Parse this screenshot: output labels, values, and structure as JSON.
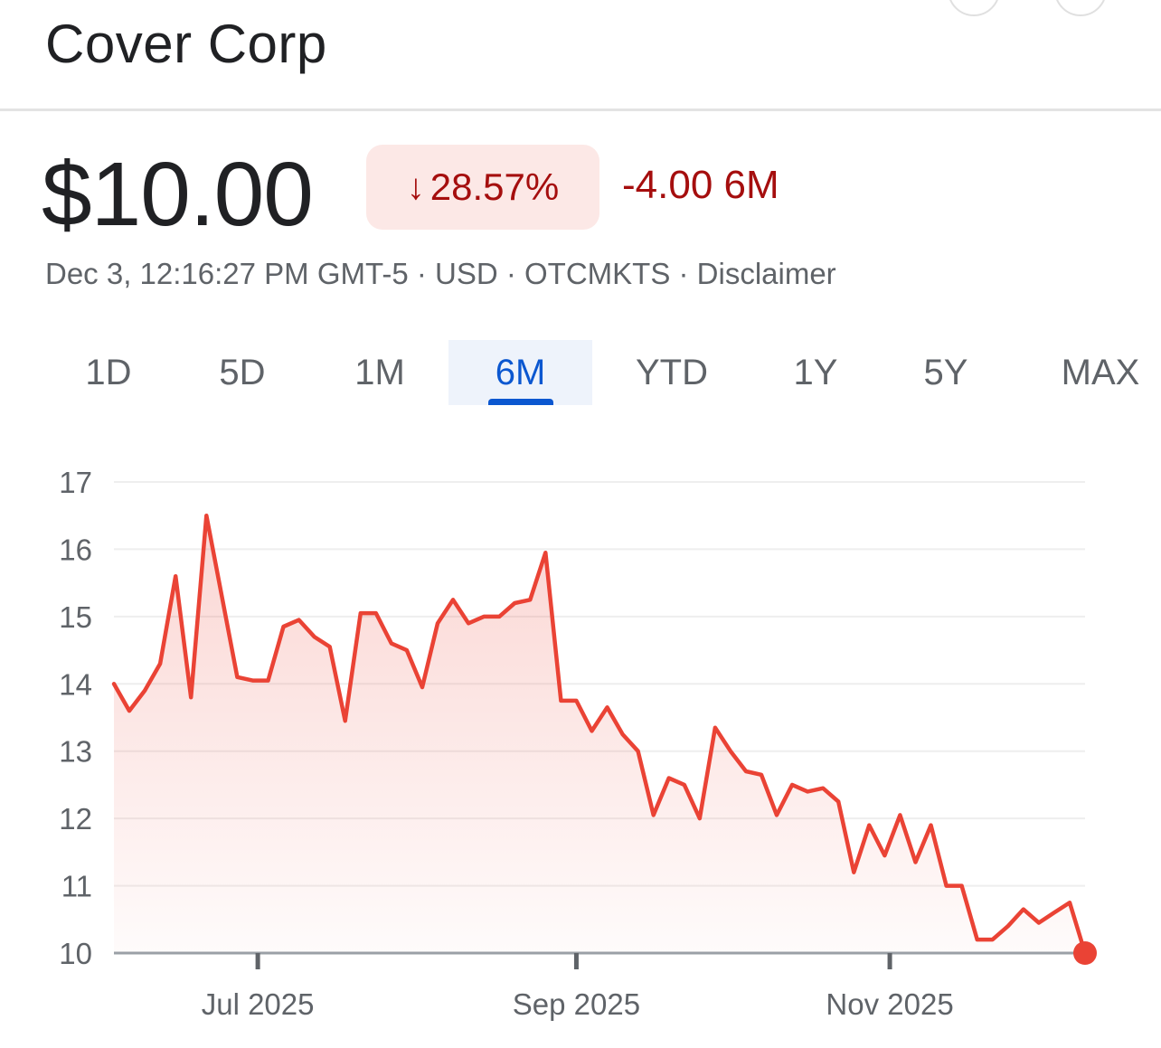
{
  "header": {
    "company": "Cover Corp"
  },
  "quote": {
    "price": "$10.00",
    "change_pct": "28.57%",
    "change_abs": "-4.00 6M",
    "meta": "Dec 3, 12:16:27 PM GMT-5 · USD · OTCMKTS · Disclaimer"
  },
  "icons": {
    "down_arrow": "arrow-down-icon"
  },
  "tabs": [
    {
      "label": "1D"
    },
    {
      "label": "5D"
    },
    {
      "label": "1M"
    },
    {
      "label": "6M",
      "active": true
    },
    {
      "label": "YTD"
    },
    {
      "label": "1Y"
    },
    {
      "label": "5Y"
    },
    {
      "label": "MAX"
    }
  ],
  "colors": {
    "line": "#ea4335",
    "negative": "#a50e0e",
    "pill_bg": "#fce8e6",
    "active_tab": "#0b57d0",
    "grid": "#eeeeee",
    "axis_text": "#5f6368"
  },
  "chart_data": {
    "type": "area",
    "title": "",
    "xlabel": "",
    "ylabel": "",
    "ylim": [
      10,
      17
    ],
    "yticks": [
      10,
      11,
      12,
      13,
      14,
      15,
      16,
      17
    ],
    "xticks": [
      {
        "date": "2025-07-01",
        "label": "Jul 2025"
      },
      {
        "date": "2025-09-01",
        "label": "Sep 2025"
      },
      {
        "date": "2025-11-01",
        "label": "Nov 2025"
      }
    ],
    "grid": true,
    "series": [
      {
        "points": [
          [
            "2025-06-03",
            14.0
          ],
          [
            "2025-06-06",
            13.6
          ],
          [
            "2025-06-09",
            13.9
          ],
          [
            "2025-06-12",
            14.3
          ],
          [
            "2025-06-15",
            15.6
          ],
          [
            "2025-06-18",
            13.8
          ],
          [
            "2025-06-21",
            16.5
          ],
          [
            "2025-06-27",
            14.1
          ],
          [
            "2025-06-30",
            14.05
          ],
          [
            "2025-07-03",
            14.05
          ],
          [
            "2025-07-06",
            14.85
          ],
          [
            "2025-07-09",
            14.95
          ],
          [
            "2025-07-12",
            14.7
          ],
          [
            "2025-07-15",
            14.55
          ],
          [
            "2025-07-18",
            13.45
          ],
          [
            "2025-07-21",
            15.05
          ],
          [
            "2025-07-24",
            15.05
          ],
          [
            "2025-07-27",
            14.6
          ],
          [
            "2025-07-30",
            14.5
          ],
          [
            "2025-08-02",
            13.95
          ],
          [
            "2025-08-05",
            14.9
          ],
          [
            "2025-08-08",
            15.25
          ],
          [
            "2025-08-11",
            14.9
          ],
          [
            "2025-08-14",
            15.0
          ],
          [
            "2025-08-17",
            15.0
          ],
          [
            "2025-08-20",
            15.2
          ],
          [
            "2025-08-23",
            15.25
          ],
          [
            "2025-08-26",
            15.95
          ],
          [
            "2025-08-29",
            13.75
          ],
          [
            "2025-09-01",
            13.75
          ],
          [
            "2025-09-04",
            13.3
          ],
          [
            "2025-09-07",
            13.65
          ],
          [
            "2025-09-10",
            13.25
          ],
          [
            "2025-09-13",
            13.0
          ],
          [
            "2025-09-16",
            12.05
          ],
          [
            "2025-09-19",
            12.6
          ],
          [
            "2025-09-22",
            12.5
          ],
          [
            "2025-09-25",
            12.0
          ],
          [
            "2025-09-28",
            13.35
          ],
          [
            "2025-10-01",
            13.0
          ],
          [
            "2025-10-04",
            12.7
          ],
          [
            "2025-10-07",
            12.65
          ],
          [
            "2025-10-10",
            12.05
          ],
          [
            "2025-10-13",
            12.5
          ],
          [
            "2025-10-16",
            12.4
          ],
          [
            "2025-10-19",
            12.45
          ],
          [
            "2025-10-22",
            12.25
          ],
          [
            "2025-10-25",
            11.2
          ],
          [
            "2025-10-28",
            11.9
          ],
          [
            "2025-10-31",
            11.45
          ],
          [
            "2025-11-03",
            12.05
          ],
          [
            "2025-11-06",
            11.35
          ],
          [
            "2025-11-09",
            11.9
          ],
          [
            "2025-11-12",
            11.0
          ],
          [
            "2025-11-15",
            11.0
          ],
          [
            "2025-11-18",
            10.2
          ],
          [
            "2025-11-21",
            10.2
          ],
          [
            "2025-11-24",
            10.4
          ],
          [
            "2025-11-27",
            10.65
          ],
          [
            "2025-11-30",
            10.45
          ],
          [
            "2025-12-03",
            10.6
          ],
          [
            "2025-12-06",
            10.75
          ],
          [
            "2025-12-09",
            10.0
          ]
        ]
      }
    ]
  }
}
